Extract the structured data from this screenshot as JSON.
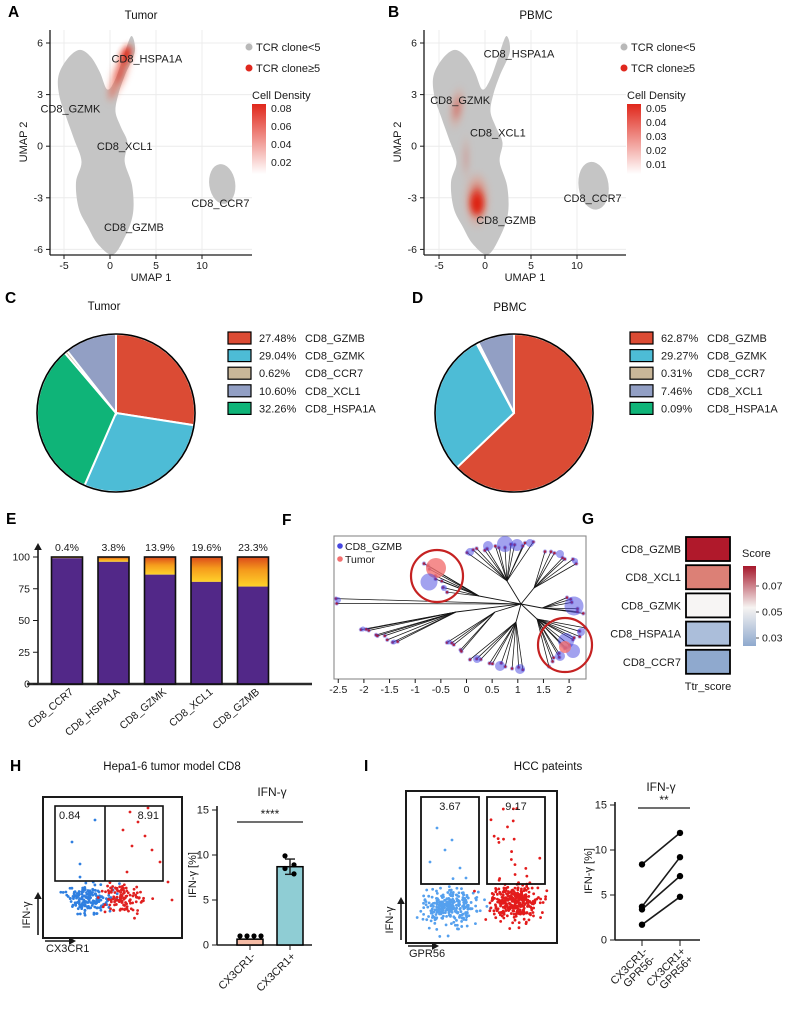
{
  "panel_letters": {
    "A": "A",
    "B": "B",
    "C": "C",
    "D": "D",
    "E": "E",
    "F": "F",
    "G": "G",
    "H": "H",
    "I": "I"
  },
  "chart_data": [
    {
      "id": "A",
      "type": "scatter-density",
      "title": "Tumor",
      "xlabel": "UMAP 1",
      "ylabel": "UMAP 2",
      "xticks": [
        -5,
        0,
        5,
        10
      ],
      "yticks": [
        6,
        3,
        0,
        -3,
        -6
      ],
      "legend": [
        {
          "label": "TCR clone<5",
          "color": "#b8b8b8"
        },
        {
          "label": "TCR clone≥5",
          "color": "#e0281e"
        }
      ],
      "colorbar": {
        "title": "Cell Density",
        "ticks": [
          "0.08",
          "0.06",
          "0.04",
          "0.02"
        ]
      },
      "cluster_labels": [
        {
          "text": "CD8_HSPA1A",
          "x": 4.0,
          "y": 5.1
        },
        {
          "text": "CD8_GZMK",
          "x": -4.3,
          "y": 2.2
        },
        {
          "text": "CD8_XCL1",
          "x": 1.6,
          "y": 0.0
        },
        {
          "text": "CD8_CCR7",
          "x": 12.0,
          "y": -3.3
        },
        {
          "text": "CD8_GZMB",
          "x": 2.6,
          "y": -4.7
        }
      ],
      "density_peak": "CD8_HSPA1A"
    },
    {
      "id": "B",
      "type": "scatter-density",
      "title": "PBMC",
      "xlabel": "UMAP 1",
      "ylabel": "UMAP 2",
      "xticks": [
        -5,
        0,
        5,
        10
      ],
      "yticks": [
        6,
        3,
        0,
        -3,
        -6
      ],
      "legend": [
        {
          "label": "TCR clone<5",
          "color": "#b8b8b8"
        },
        {
          "label": "TCR clone≥5",
          "color": "#e0281e"
        }
      ],
      "colorbar": {
        "title": "Cell Density",
        "ticks": [
          "0.05",
          "0.04",
          "0.03",
          "0.02",
          "0.01"
        ]
      },
      "cluster_labels": [
        {
          "text": "CD8_HSPA1A",
          "x": 3.7,
          "y": 5.4
        },
        {
          "text": "CD8_GZMK",
          "x": -2.7,
          "y": 2.7
        },
        {
          "text": "CD8_XCL1",
          "x": 1.4,
          "y": 0.8
        },
        {
          "text": "CD8_CCR7",
          "x": 11.7,
          "y": -3.0
        },
        {
          "text": "CD8_GZMB",
          "x": 2.3,
          "y": -4.3
        }
      ],
      "density_peak": "CD8_GZMB"
    },
    {
      "id": "C",
      "type": "pie",
      "title": "Tumor",
      "slices": [
        {
          "label": "CD8_GZMB",
          "pct": 27.48,
          "pct_label": "27.48%",
          "color": "#db4b34"
        },
        {
          "label": "CD8_GZMK",
          "pct": 29.04,
          "pct_label": "29.04%",
          "color": "#4dbcd6"
        },
        {
          "label": "CD8_CCR7",
          "pct": 0.62,
          "pct_label": "0.62%",
          "color": "#c9b799"
        },
        {
          "label": "CD8_XCL1",
          "pct": 10.6,
          "pct_label": "10.60%",
          "color": "#929fc4"
        },
        {
          "label": "CD8_HSPA1A",
          "pct": 32.26,
          "pct_label": "32.26%",
          "color": "#0fb478"
        }
      ],
      "draw_order": [
        0,
        1,
        4,
        2,
        3
      ]
    },
    {
      "id": "D",
      "type": "pie",
      "title": "PBMC",
      "slices": [
        {
          "label": "CD8_GZMB",
          "pct": 62.87,
          "pct_label": "62.87%",
          "color": "#db4b34"
        },
        {
          "label": "CD8_GZMK",
          "pct": 29.27,
          "pct_label": "29.27%",
          "color": "#4dbcd6"
        },
        {
          "label": "CD8_CCR7",
          "pct": 0.31,
          "pct_label": "0.31%",
          "color": "#c9b799"
        },
        {
          "label": "CD8_XCL1",
          "pct": 7.46,
          "pct_label": "7.46%",
          "color": "#929fc4"
        },
        {
          "label": "CD8_HSPA1A",
          "pct": 0.09,
          "pct_label": "0.09%",
          "color": "#0fb478"
        }
      ],
      "draw_order": [
        0,
        1,
        4,
        2,
        3
      ]
    },
    {
      "id": "E",
      "type": "stacked-bar",
      "categories": [
        "CD8_CCR7",
        "CD8_HSPA1A",
        "CD8_GZMK",
        "CD8_XCL1",
        "CD8_GZMB"
      ],
      "top_pct": [
        0.4,
        3.8,
        13.9,
        19.6,
        23.3
      ],
      "pct_labels": [
        "0.4%",
        "3.8%",
        "13.9%",
        "19.6%",
        "23.3%"
      ],
      "yticks": [
        0,
        25,
        50,
        75,
        100
      ],
      "ylim": [
        0,
        100
      ],
      "bar_color": "#522888",
      "top_gradient": [
        "#dc4a1a",
        "#f59b1c",
        "#ffd22a"
      ]
    },
    {
      "id": "F",
      "type": "tree",
      "legend": [
        {
          "label": "CD8_GZMB",
          "color": "#4646e0"
        },
        {
          "label": "Tumor",
          "color": "#f27070"
        }
      ],
      "xticks": [
        -2.5,
        -2,
        -1.5,
        -1,
        -0.5,
        0,
        0.5,
        1,
        1.5,
        2
      ],
      "highlight_circle_color": "#c52222",
      "highlight_circles": 2
    },
    {
      "id": "G",
      "type": "heatmap",
      "col_label": "Ttr_score",
      "colorbar": {
        "title": "Score",
        "ticks": [
          "0.07",
          "0.05",
          "0.03"
        ]
      },
      "rows": [
        {
          "label": "CD8_GZMB",
          "score": 0.082,
          "color": "#b0192b"
        },
        {
          "label": "CD8_XCL1",
          "score": 0.064,
          "color": "#dc8076"
        },
        {
          "label": "CD8_GZMK",
          "score": 0.047,
          "color": "#f7f5f4"
        },
        {
          "label": "CD8_HSPA1A",
          "score": 0.036,
          "color": "#abbeda"
        },
        {
          "label": "CD8_CCR7",
          "score": 0.03,
          "color": "#8fa9ce"
        }
      ]
    },
    {
      "id": "H",
      "type": "flow-scatter-bar",
      "title": "Hepa1-6 tumor model CD8",
      "flow": {
        "xlabel": "CX3CR1",
        "ylabel": "IFN-γ",
        "gate_values": [
          "0.84",
          "8.91"
        ],
        "neg_color": "#2f7fe0",
        "pos_color": "#e02020"
      },
      "bar": {
        "title": "IFN-γ",
        "ylabel": "IFN-γ [%]",
        "yticks": [
          0,
          5,
          10,
          15
        ],
        "sig": "****",
        "groups": [
          {
            "label": "CX3CR1-",
            "mean": 0.65,
            "color": "#f5bba5",
            "points": [
              0.5,
              0.6,
              0.7,
              0.8
            ]
          },
          {
            "label": "CX3CR1+",
            "mean": 8.7,
            "sd": 0.85,
            "color": "#8fcdd4",
            "points": [
              9.9,
              8.9,
              8.5,
              7.9
            ]
          }
        ]
      }
    },
    {
      "id": "I",
      "type": "flow-scatter-paired",
      "title": "HCC pateints",
      "flow": {
        "xlabel": "GPR56",
        "ylabel": "IFN-γ",
        "gate_values": [
          "3.67",
          "9.17"
        ],
        "neg_color": "#55a0ee",
        "pos_color": "#e31b1b"
      },
      "paired": {
        "title": "IFN-γ",
        "ylabel": "IFN-γ [%]",
        "yticks": [
          0,
          5,
          10,
          15
        ],
        "sig": "**",
        "group_labels": [
          [
            "CX3CR1-",
            "GPR56-"
          ],
          [
            "CX3CR1+",
            "GPR56+"
          ]
        ],
        "pairs": [
          [
            8.4,
            11.9
          ],
          [
            3.7,
            9.2
          ],
          [
            3.4,
            7.1
          ],
          [
            1.7,
            4.8
          ]
        ]
      }
    }
  ]
}
